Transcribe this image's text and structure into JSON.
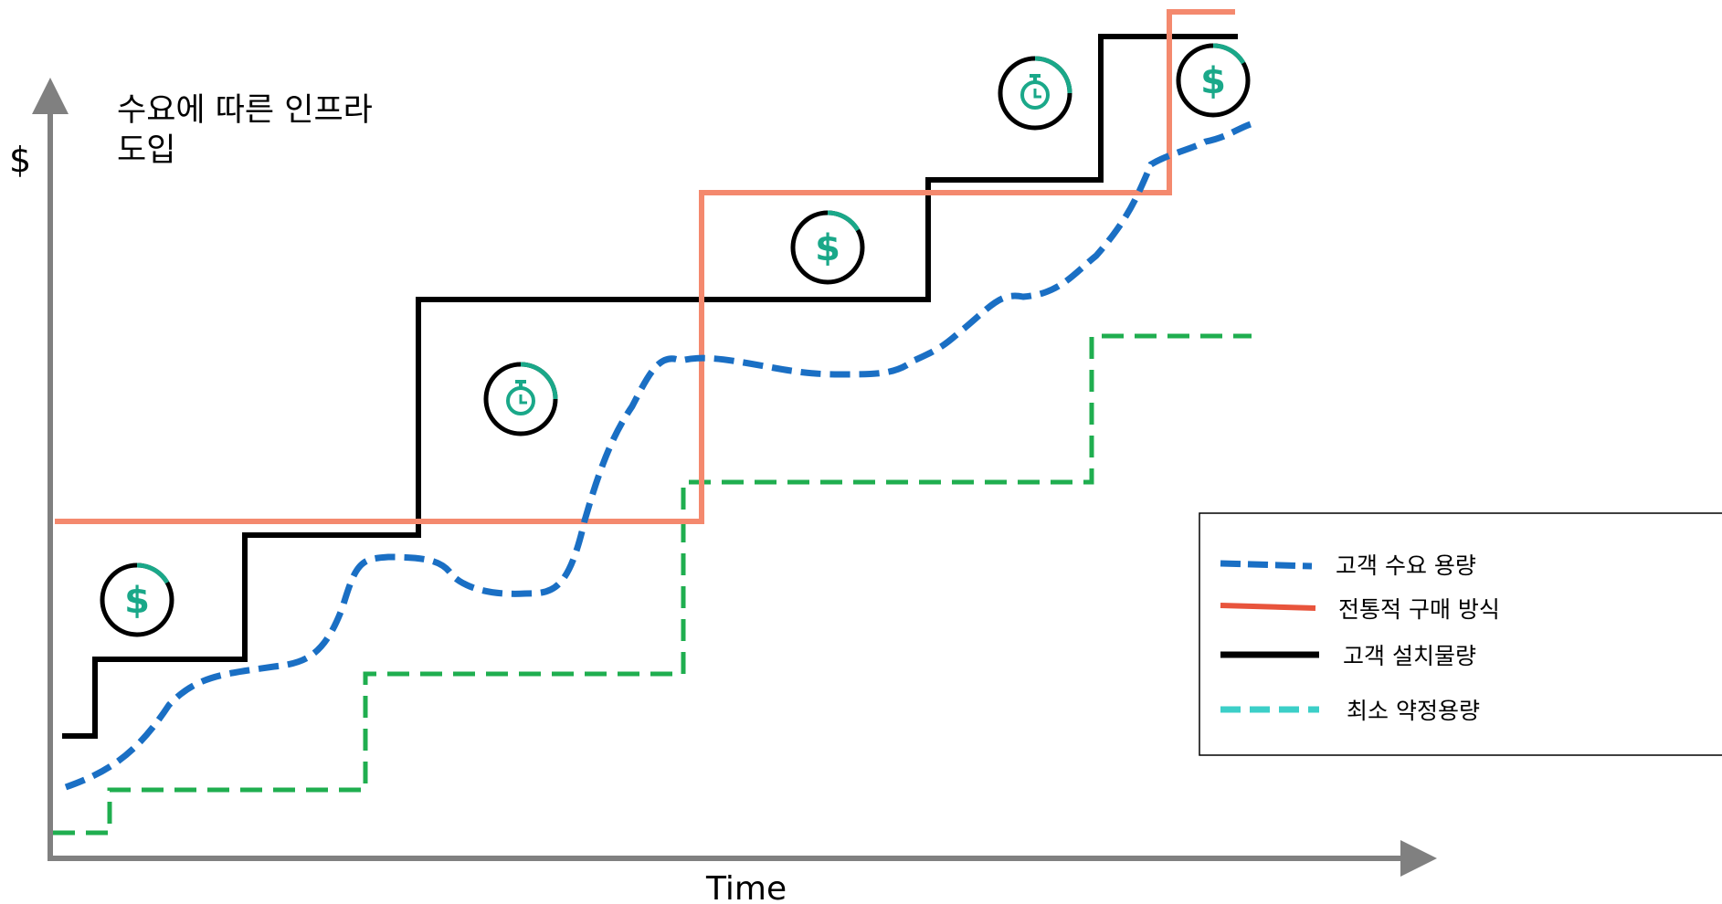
{
  "title_lines": [
    "수요에 따른 인프라",
    "도입"
  ],
  "y_axis_label": "$",
  "x_axis_label": "Time",
  "colors": {
    "axis": "#808080",
    "demand": "#1a6fc4",
    "traditional": "#f4896e",
    "installed": "#000000",
    "commitment": "#1fae4f",
    "icon_accent": "#1aa889",
    "legend_traditional": "#e8543c",
    "legend_commitment": "#3ccfc8"
  },
  "icons": [
    {
      "name": "dollar-icon",
      "glyph": "$"
    },
    {
      "name": "stopwatch-icon",
      "glyph": "stopwatch"
    },
    {
      "name": "dollar-icon",
      "glyph": "$"
    },
    {
      "name": "stopwatch-icon",
      "glyph": "stopwatch"
    },
    {
      "name": "dollar-icon",
      "glyph": "$"
    }
  ],
  "legend": [
    {
      "label": "고객 수요 용량",
      "style": "dashed-demand"
    },
    {
      "label": "전통적 구매 방식",
      "style": "solid-traditional"
    },
    {
      "label": "고객 설치물량",
      "style": "solid-installed"
    },
    {
      "label": "최소 약정용량",
      "style": "dashed-commitment"
    }
  ]
}
